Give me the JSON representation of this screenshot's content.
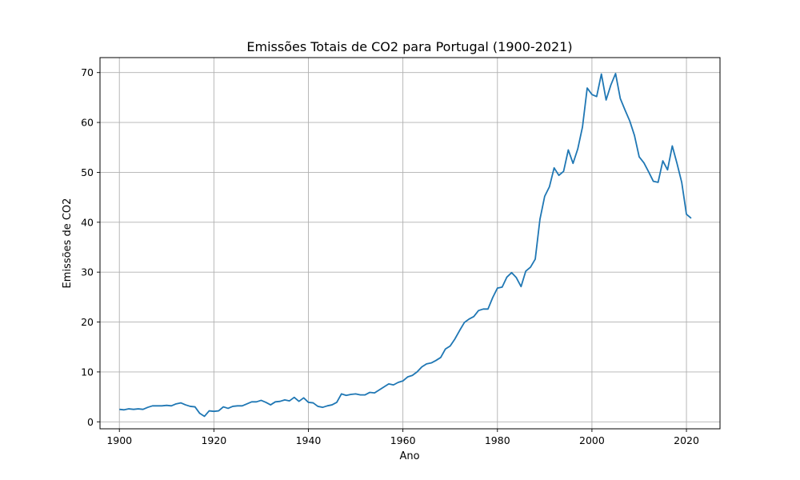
{
  "chart_data": {
    "type": "line",
    "title": "Emissões Totais de CO2 para Portugal (1900-2021)",
    "xlabel": "Ano",
    "ylabel": "Emissões de CO2",
    "xlim": [
      1895.9,
      2027.1
    ],
    "ylim": [
      -1.4,
      73.0
    ],
    "xticks": [
      1900,
      1920,
      1940,
      1960,
      1980,
      2000,
      2020
    ],
    "yticks": [
      0,
      10,
      20,
      30,
      40,
      50,
      60,
      70
    ],
    "grid": true,
    "line_color": "#1f77b4",
    "series": [
      {
        "x": [
          1900,
          1901,
          1902,
          1903,
          1904,
          1905,
          1906,
          1907,
          1908,
          1909,
          1910,
          1911,
          1912,
          1913,
          1914,
          1915,
          1916,
          1917,
          1918,
          1919,
          1920,
          1921,
          1922,
          1923,
          1924,
          1925,
          1926,
          1927,
          1928,
          1929,
          1930,
          1931,
          1932,
          1933,
          1934,
          1935,
          1936,
          1937,
          1938,
          1939,
          1940,
          1941,
          1942,
          1943,
          1944,
          1945,
          1946,
          1947,
          1948,
          1949,
          1950,
          1951,
          1952,
          1953,
          1954,
          1955,
          1956,
          1957,
          1958,
          1959,
          1960,
          1961,
          1962,
          1963,
          1964,
          1965,
          1966,
          1967,
          1968,
          1969,
          1970,
          1971,
          1972,
          1973,
          1974,
          1975,
          1976,
          1977,
          1978,
          1979,
          1980,
          1981,
          1982,
          1983,
          1984,
          1985,
          1986,
          1987,
          1988,
          1989,
          1990,
          1991,
          1992,
          1993,
          1994,
          1995,
          1996,
          1997,
          1998,
          1999,
          2000,
          2001,
          2002,
          2003,
          2004,
          2005,
          2006,
          2007,
          2008,
          2009,
          2010,
          2011,
          2012,
          2013,
          2014,
          2015,
          2016,
          2017,
          2018,
          2019,
          2020,
          2021
        ],
        "values": [
          2.5,
          2.4,
          2.6,
          2.5,
          2.6,
          2.5,
          2.9,
          3.2,
          3.2,
          3.2,
          3.3,
          3.2,
          3.6,
          3.8,
          3.4,
          3.1,
          3.0,
          1.7,
          1.1,
          2.2,
          2.1,
          2.2,
          3.0,
          2.7,
          3.1,
          3.2,
          3.2,
          3.6,
          4.0,
          4.0,
          4.3,
          3.9,
          3.4,
          4.0,
          4.1,
          4.4,
          4.2,
          4.9,
          4.1,
          4.8,
          3.9,
          3.8,
          3.1,
          2.9,
          3.2,
          3.4,
          3.9,
          5.6,
          5.3,
          5.5,
          5.6,
          5.4,
          5.4,
          5.9,
          5.8,
          6.4,
          7.0,
          7.6,
          7.4,
          7.9,
          8.2,
          9.0,
          9.3,
          10.0,
          11.0,
          11.6,
          11.8,
          12.3,
          12.9,
          14.6,
          15.2,
          16.6,
          18.3,
          19.9,
          20.6,
          21.1,
          22.3,
          22.6,
          22.6,
          24.9,
          26.8,
          27.0,
          29.0,
          29.9,
          28.9,
          27.1,
          30.2,
          31.0,
          32.6,
          40.6,
          45.2,
          47.1,
          50.9,
          49.4,
          50.2,
          54.5,
          51.8,
          54.7,
          59.1,
          66.9,
          65.6,
          65.2,
          69.7,
          64.5,
          67.5,
          69.8,
          64.8,
          62.5,
          60.3,
          57.4,
          53.1,
          51.9,
          50.1,
          48.2,
          48.0,
          52.3,
          50.5,
          55.3,
          51.8,
          48.0,
          41.6,
          40.8
        ]
      }
    ]
  }
}
